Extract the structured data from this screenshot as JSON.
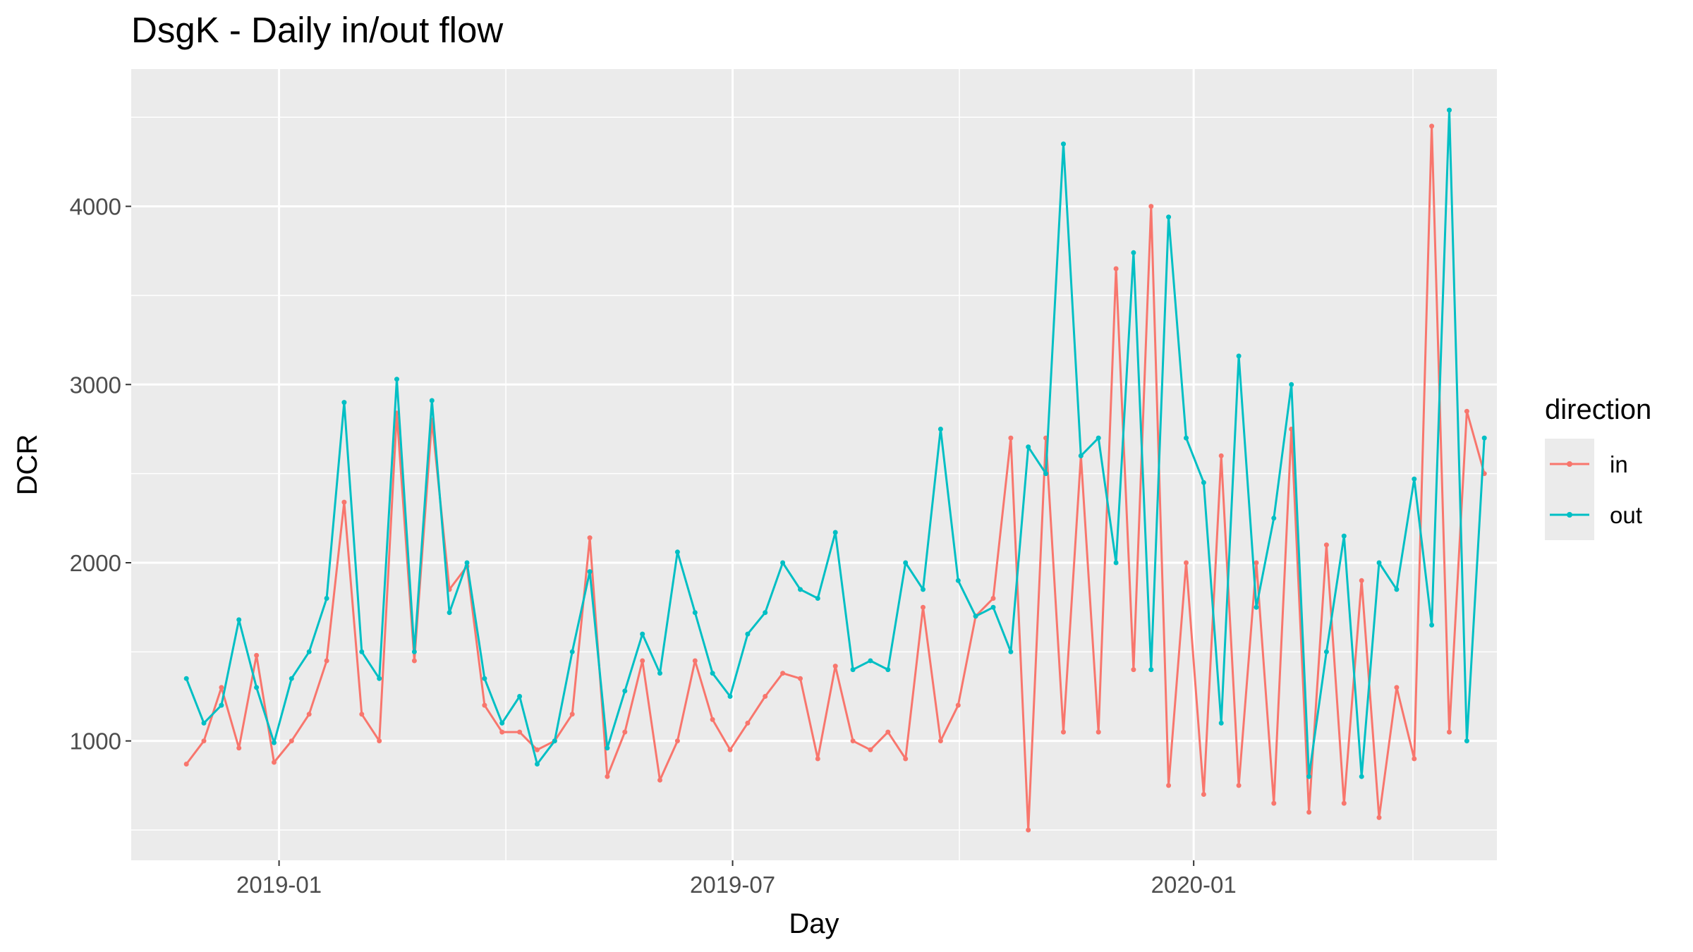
{
  "chart_data": {
    "type": "line",
    "title": "DsgK - Daily in/out flow",
    "xlabel": "Day",
    "ylabel": "DCR",
    "x_ticks": [
      "2019-01",
      "2019-07",
      "2020-01"
    ],
    "y_ticks": [
      1000,
      2000,
      3000,
      4000
    ],
    "xlim": [
      "2018-11-03",
      "2020-05-01"
    ],
    "ylim": [
      330,
      4770
    ],
    "grid": true,
    "legend": {
      "title": "direction",
      "position": "right"
    },
    "x": [
      "2018-11-25",
      "2018-12-02",
      "2018-12-09",
      "2018-12-16",
      "2018-12-23",
      "2018-12-30",
      "2019-01-06",
      "2019-01-13",
      "2019-01-20",
      "2019-01-27",
      "2019-02-03",
      "2019-02-10",
      "2019-02-17",
      "2019-02-24",
      "2019-03-03",
      "2019-03-10",
      "2019-03-17",
      "2019-03-24",
      "2019-03-31",
      "2019-04-07",
      "2019-04-14",
      "2019-04-21",
      "2019-04-28",
      "2019-05-05",
      "2019-05-12",
      "2019-05-19",
      "2019-05-26",
      "2019-06-02",
      "2019-06-09",
      "2019-06-16",
      "2019-06-23",
      "2019-06-30",
      "2019-07-07",
      "2019-07-14",
      "2019-07-21",
      "2019-07-28",
      "2019-08-04",
      "2019-08-11",
      "2019-08-18",
      "2019-08-25",
      "2019-09-01",
      "2019-09-08",
      "2019-09-15",
      "2019-09-22",
      "2019-09-29",
      "2019-10-06",
      "2019-10-13",
      "2019-10-20",
      "2019-10-27",
      "2019-11-03",
      "2019-11-10",
      "2019-11-17",
      "2019-11-24",
      "2019-12-01",
      "2019-12-08",
      "2019-12-15",
      "2019-12-22",
      "2019-12-29",
      "2020-01-05",
      "2020-01-12",
      "2020-01-19",
      "2020-01-26",
      "2020-02-02",
      "2020-02-09",
      "2020-02-16",
      "2020-02-23",
      "2020-03-01",
      "2020-03-08",
      "2020-03-15",
      "2020-03-22",
      "2020-03-29",
      "2020-04-05",
      "2020-04-12",
      "2020-04-19",
      "2020-04-26"
    ],
    "series": [
      {
        "name": "in",
        "color": "#F8766D",
        "values": [
          870,
          1000,
          1300,
          960,
          1480,
          880,
          1000,
          1150,
          1450,
          2340,
          1150,
          1000,
          2840,
          1450,
          2800,
          1850,
          1980,
          1200,
          1050,
          1050,
          950,
          1000,
          1150,
          2140,
          800,
          1050,
          1450,
          780,
          1000,
          1450,
          1120,
          950,
          1100,
          1250,
          1380,
          1350,
          900,
          1420,
          1000,
          950,
          1050,
          900,
          1750,
          1000,
          1200,
          1700,
          1800,
          2700,
          500,
          2700,
          1050,
          2600,
          1050,
          3650,
          1400,
          4000,
          750,
          2000,
          700,
          2600,
          750,
          2000,
          650,
          2750,
          600,
          2100,
          650,
          1900,
          570,
          1300,
          900,
          4450,
          1050,
          2850,
          2500
        ]
      },
      {
        "name": "out",
        "color": "#00BFC4",
        "values": [
          1350,
          1100,
          1200,
          1680,
          1300,
          990,
          1350,
          1500,
          1800,
          2900,
          1500,
          1350,
          3030,
          1500,
          2910,
          1720,
          2000,
          1350,
          1100,
          1250,
          870,
          1000,
          1500,
          1950,
          960,
          1280,
          1600,
          1380,
          2060,
          1720,
          1380,
          1250,
          1600,
          1720,
          2000,
          1850,
          1800,
          2170,
          1400,
          1450,
          1400,
          2000,
          1850,
          2750,
          1900,
          1700,
          1750,
          1500,
          2650,
          2500,
          4350,
          2600,
          2700,
          2000,
          3740,
          1400,
          3940,
          2700,
          2450,
          1100,
          3160,
          1750,
          2250,
          3000,
          800,
          1500,
          2150,
          800,
          2000,
          1850,
          2470,
          1650,
          4540,
          1000,
          2700
        ]
      }
    ]
  }
}
